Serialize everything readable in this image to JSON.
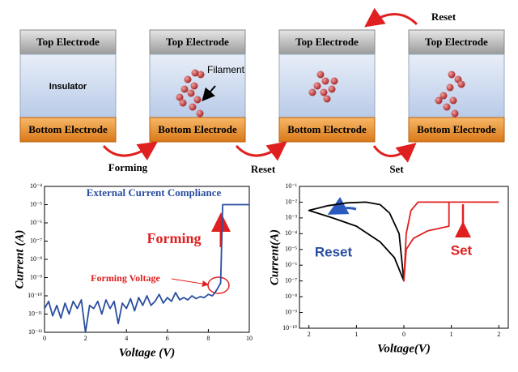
{
  "diagram": {
    "cells": [
      {
        "top": "Top Electrode",
        "middle": "Insulator",
        "bottom": "Bottom Electrode"
      },
      {
        "top": "Top Electrode",
        "middle": "Filament",
        "bottom": "Bottom Electrode"
      },
      {
        "top": "Top Electrode",
        "bottom": "Bottom Electrode"
      },
      {
        "top": "Top Electrode",
        "bottom": "Bottom Electrode"
      }
    ],
    "steps": [
      "Forming",
      "Reset",
      "Set",
      "Reset"
    ]
  },
  "chart_data": [
    {
      "type": "line",
      "log_y": true,
      "xlabel": "Voltage (V)",
      "ylabel": "Current (A)",
      "annotations": [
        "External Current Compliance",
        "Forming",
        "Forming Voltage"
      ],
      "xlim": [
        0,
        10
      ],
      "xticks": [
        0,
        2,
        4,
        6,
        8,
        10
      ],
      "ylim": [
        1e-12,
        0.0001
      ],
      "yticks": [
        {
          "value": 1e-12,
          "label": "10⁻¹²"
        },
        {
          "value": 1e-11,
          "label": "10⁻¹¹"
        },
        {
          "value": 1e-10,
          "label": "10⁻¹⁰"
        },
        {
          "value": 1e-09,
          "label": "10⁻⁹"
        },
        {
          "value": 1e-08,
          "label": "10⁻⁸"
        },
        {
          "value": 1e-07,
          "label": "10⁻⁷"
        },
        {
          "value": 1e-06,
          "label": "10⁻⁶"
        },
        {
          "value": 1e-05,
          "label": "10⁻⁵"
        },
        {
          "value": 0.0001,
          "label": "10⁻⁴"
        }
      ],
      "series": [
        {
          "color": "#2a4ea0",
          "x": [
            0,
            0.2,
            0.4,
            0.6,
            0.8,
            1.0,
            1.2,
            1.4,
            1.6,
            1.8,
            2.0,
            2.2,
            2.4,
            2.6,
            2.8,
            3.0,
            3.2,
            3.4,
            3.6,
            3.8,
            4.0,
            4.2,
            4.4,
            4.6,
            4.8,
            5.0,
            5.2,
            5.4,
            5.6,
            5.8,
            6.0,
            6.2,
            6.4,
            6.6,
            6.8,
            7.0,
            7.2,
            7.4,
            7.6,
            7.8,
            8.0,
            8.2,
            8.4,
            8.6,
            8.7,
            10
          ],
          "values": [
            2e-11,
            5e-11,
            8e-12,
            3e-11,
            6e-12,
            4e-11,
            1e-11,
            5e-11,
            2e-11,
            6e-11,
            1e-12,
            3e-11,
            2e-11,
            5e-11,
            1e-11,
            6e-11,
            2e-11,
            5e-11,
            3e-12,
            4e-11,
            2e-11,
            7e-11,
            1.5e-11,
            8e-11,
            3e-11,
            1e-10,
            3e-11,
            5e-11,
            1.2e-10,
            4e-11,
            8e-11,
            5e-11,
            1.5e-10,
            6e-11,
            8e-11,
            6e-11,
            1e-10,
            7e-11,
            9e-11,
            8e-11,
            1.2e-10,
            1e-10,
            2e-10,
            5e-10,
            1e-05,
            1e-05
          ]
        }
      ]
    },
    {
      "type": "line",
      "log_y": true,
      "xlabel": "Voltage(V)",
      "ylabel": "Current(A)",
      "annotations": [
        "Reset",
        "Set"
      ],
      "xlim": [
        -2.2,
        2.2
      ],
      "xticks": [
        {
          "value": -2,
          "label": "2"
        },
        {
          "value": -1,
          "label": "1"
        },
        0,
        1,
        2
      ],
      "ylim": [
        1e-10,
        0.1
      ],
      "yticks": [
        {
          "value": 1e-10,
          "label": "10⁻¹⁰"
        },
        {
          "value": 1e-09,
          "label": "10⁻⁹"
        },
        {
          "value": 1e-08,
          "label": "10⁻⁸"
        },
        {
          "value": 1e-07,
          "label": "10⁻⁷"
        },
        {
          "value": 1e-06,
          "label": "10⁻⁶"
        },
        {
          "value": 1e-05,
          "label": "10⁻⁵"
        },
        {
          "value": 0.0001,
          "label": "10⁻⁴"
        },
        {
          "value": 0.001,
          "label": "10⁻³"
        },
        {
          "value": 0.01,
          "label": "10⁻²"
        },
        {
          "value": 0.1,
          "label": "10⁻¹"
        }
      ],
      "series": [
        {
          "color": "#000000",
          "x": [
            0,
            -0.1,
            -0.3,
            -0.5,
            -0.8,
            -1.2,
            -1.6,
            -2,
            -1.5,
            -1,
            -0.5,
            -0.2,
            0
          ],
          "values": [
            1e-07,
            0.0001,
            0.002,
            0.007,
            0.01,
            0.009,
            0.006,
            0.003,
            0.001,
            0.0003,
            3e-05,
            3e-06,
            1e-07
          ]
        },
        {
          "color": "#e02020",
          "x": [
            2,
            0.3,
            0.15,
            0.05,
            0,
            0.05,
            0.2,
            0.5,
            0.95,
            0.95,
            2
          ],
          "values": [
            0.01,
            0.01,
            0.003,
            0.0001,
            1e-07,
            1e-05,
            5e-05,
            0.00015,
            0.0003,
            0.01,
            0.01
          ]
        }
      ]
    }
  ]
}
